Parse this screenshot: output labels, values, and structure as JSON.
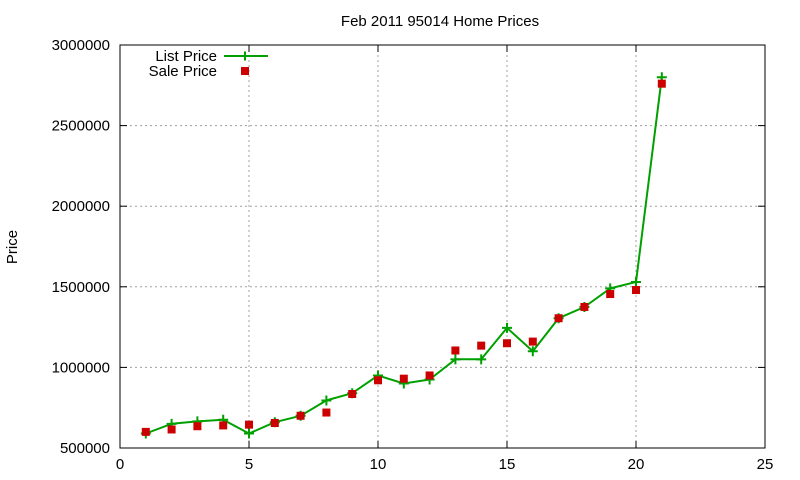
{
  "chart_data": {
    "type": "line",
    "title": "Feb 2011 95014 Home Prices",
    "xlabel": "",
    "ylabel": "Price",
    "xlim": [
      0,
      25
    ],
    "ylim": [
      500000,
      3000000
    ],
    "xticks": [
      "0",
      "5",
      "10",
      "15",
      "20",
      "25"
    ],
    "yticks": [
      "500000",
      "1000000",
      "1500000",
      "2000000",
      "2500000",
      "3000000"
    ],
    "grid": true,
    "legend_position": "top-left",
    "series": [
      {
        "name": "List Price",
        "style": "line-plus",
        "color": "#00a000",
        "x": [
          1,
          2,
          3,
          4,
          5,
          6,
          7,
          8,
          9,
          10,
          11,
          12,
          13,
          14,
          15,
          16,
          17,
          18,
          19,
          20,
          21
        ],
        "y": [
          590000,
          650000,
          665000,
          675000,
          590000,
          660000,
          700000,
          795000,
          840000,
          950000,
          900000,
          925000,
          1050000,
          1050000,
          1245000,
          1100000,
          1305000,
          1375000,
          1490000,
          1530000,
          2800000
        ]
      },
      {
        "name": "Sale Price",
        "style": "square",
        "color": "#cc0000",
        "x": [
          1,
          2,
          3,
          4,
          5,
          6,
          7,
          8,
          9,
          10,
          11,
          12,
          13,
          14,
          15,
          16,
          17,
          18,
          19,
          20,
          21
        ],
        "y": [
          600000,
          615000,
          635000,
          640000,
          645000,
          655000,
          700000,
          720000,
          835000,
          920000,
          930000,
          950000,
          1105000,
          1135000,
          1150000,
          1160000,
          1305000,
          1375000,
          1455000,
          1480000,
          2760000
        ]
      }
    ]
  }
}
